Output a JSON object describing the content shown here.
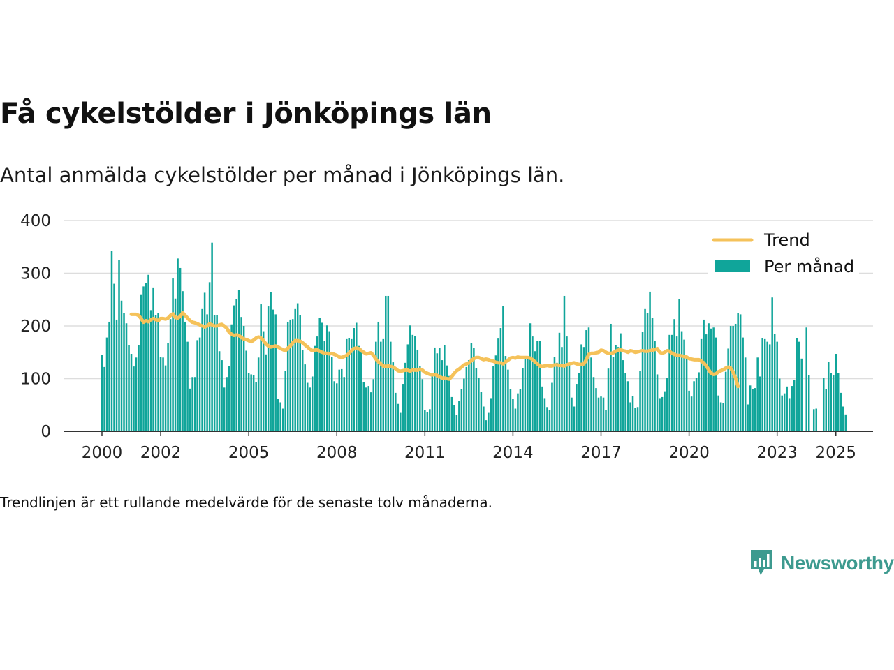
{
  "header": {
    "title": "Få cykelstölder i Jönköpings län",
    "subtitle": "Antal anmälda cykelstölder per månad i Jönköpings län."
  },
  "footer": {
    "note": "Trendlinjen är ett rullande medelvärde för de senaste tolv månaderna.",
    "brand": "Newsworthy"
  },
  "colors": {
    "bars": "#10a59a",
    "trend": "#f5c25a",
    "grid": "#dddddd",
    "axis": "#333333",
    "brand": "#3d9a8f"
  },
  "chart_data": {
    "type": "bar",
    "title": "Få cykelstölder i Jönköpings län",
    "subtitle": "Antal anmälda cykelstölder per månad i Jönköpings län.",
    "xlabel": "",
    "ylabel": "",
    "ylim": [
      0,
      400
    ],
    "yticks": [
      0,
      100,
      200,
      300,
      400
    ],
    "xlim": [
      "2000-01",
      "2025-02"
    ],
    "xticks": [
      "2000",
      "2002",
      "2005",
      "2008",
      "2011",
      "2014",
      "2017",
      "2020",
      "2023",
      "2025"
    ],
    "grid": true,
    "legend_position": "top-right",
    "series": [
      {
        "name": "Per månad",
        "type": "bar",
        "start": "2000-01",
        "frequency": "monthly",
        "values": [
          145,
          122,
          178,
          208,
          342,
          280,
          212,
          325,
          248,
          225,
          205,
          163,
          147,
          123,
          140,
          163,
          260,
          275,
          281,
          297,
          230,
          273,
          220,
          225,
          141,
          140,
          125,
          167,
          213,
          290,
          252,
          328,
          310,
          266,
          208,
          170,
          81,
          103,
          103,
          173,
          178,
          232,
          263,
          222,
          283,
          358,
          220,
          220,
          152,
          135,
          83,
          103,
          124,
          203,
          239,
          251,
          268,
          217,
          200,
          153,
          110,
          108,
          107,
          93,
          140,
          241,
          190,
          146,
          237,
          264,
          231,
          222,
          62,
          55,
          43,
          115,
          208,
          212,
          213,
          232,
          243,
          220,
          154,
          127,
          92,
          83,
          104,
          162,
          180,
          215,
          206,
          172,
          201,
          190,
          141,
          95,
          91,
          117,
          118,
          103,
          175,
          177,
          175,
          196,
          206,
          162,
          157,
          93,
          83,
          86,
          74,
          99,
          170,
          208,
          170,
          175,
          257,
          257,
          170,
          131,
          73,
          52,
          35,
          90,
          130,
          165,
          201,
          183,
          181,
          155,
          123,
          99,
          40,
          37,
          42,
          110,
          159,
          148,
          158,
          135,
          163,
          125,
          105,
          65,
          49,
          31,
          58,
          80,
          100,
          122,
          135,
          167,
          158,
          120,
          102,
          75,
          47,
          21,
          35,
          63,
          124,
          144,
          176,
          196,
          238,
          143,
          117,
          80,
          61,
          43,
          72,
          80,
          120,
          140,
          140,
          205,
          180,
          152,
          171,
          172,
          85,
          63,
          46,
          40,
          92,
          141,
          130,
          187,
          160,
          257,
          180,
          130,
          64,
          47,
          90,
          110,
          165,
          160,
          192,
          197,
          140,
          103,
          82,
          64,
          66,
          64,
          40,
          119,
          204,
          141,
          163,
          160,
          186,
          135,
          110,
          95,
          55,
          67,
          45,
          46,
          114,
          189,
          232,
          225,
          265,
          215,
          172,
          108,
          63,
          65,
          76,
          101,
          183,
          183,
          213,
          180,
          251,
          190,
          174,
          143,
          77,
          66,
          95,
          101,
          112,
          175,
          212,
          184,
          205,
          195,
          197,
          178,
          68,
          55,
          53,
          113,
          157,
          200,
          200,
          204,
          225,
          222,
          178,
          140,
          51,
          87,
          80,
          82,
          140,
          104,
          177,
          175,
          170,
          165,
          254,
          185,
          170,
          100,
          68,
          72,
          85,
          63,
          86,
          97,
          177,
          170,
          138,
          0,
          197,
          107,
          0,
          42,
          43,
          0,
          0,
          101,
          80,
          132,
          111,
          107,
          147,
          110,
          73,
          47,
          32
        ]
      },
      {
        "name": "Trend",
        "type": "line",
        "start": "2001-01",
        "frequency": "monthly",
        "values": [
          222,
          222,
          222,
          220,
          214,
          207,
          210,
          208,
          212,
          214,
          212,
          210,
          214,
          214,
          213,
          215,
          220,
          223,
          216,
          215,
          218,
          225,
          220,
          215,
          210,
          207,
          206,
          204,
          202,
          200,
          198,
          200,
          204,
          202,
          200,
          200,
          202,
          203,
          200,
          196,
          188,
          184,
          182,
          183,
          182,
          178,
          175,
          174,
          172,
          170,
          173,
          177,
          179,
          177,
          172,
          166,
          162,
          160,
          161,
          162,
          160,
          157,
          155,
          153,
          158,
          162,
          168,
          172,
          172,
          171,
          168,
          164,
          160,
          156,
          153,
          154,
          155,
          152,
          150,
          148,
          148,
          147,
          148,
          146,
          144,
          141,
          140,
          142,
          144,
          148,
          153,
          157,
          158,
          157,
          153,
          150,
          147,
          148,
          149,
          144,
          137,
          132,
          128,
          124,
          123,
          124,
          123,
          122,
          119,
          115,
          114,
          115,
          116,
          116,
          114,
          117,
          116,
          116,
          118,
          116,
          112,
          110,
          108,
          107,
          108,
          106,
          104,
          101,
          101,
          100,
          99,
          104,
          110,
          115,
          118,
          122,
          126,
          128,
          130,
          134,
          138,
          140,
          140,
          138,
          136,
          137,
          136,
          134,
          133,
          131,
          130,
          130,
          128,
          132,
          135,
          139,
          140,
          139,
          141,
          140,
          140,
          140,
          140,
          139,
          136,
          132,
          128,
          124,
          123,
          124,
          125,
          124,
          124,
          126,
          126,
          125,
          125,
          124,
          126,
          128,
          129,
          130,
          128,
          127,
          127,
          128,
          136,
          146,
          148,
          148,
          149,
          150,
          154,
          153,
          150,
          148,
          148,
          149,
          152,
          154,
          155,
          153,
          152,
          150,
          153,
          152,
          150,
          151,
          152,
          153,
          152,
          152,
          153,
          154,
          155,
          157,
          150,
          148,
          150,
          153,
          152,
          148,
          146,
          144,
          144,
          143,
          142,
          141,
          138,
          137,
          136,
          136,
          136,
          133,
          130,
          124,
          117,
          110,
          108,
          109,
          113,
          115,
          117,
          120,
          122,
          120,
          112,
          101,
          85
        ]
      }
    ]
  }
}
